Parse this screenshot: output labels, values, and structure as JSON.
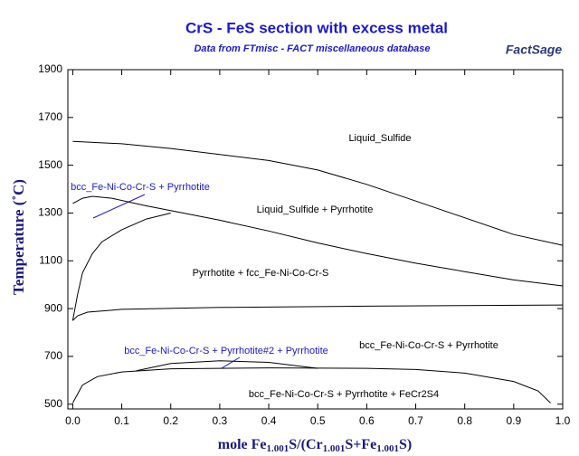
{
  "chart_data": {
    "type": "line",
    "title": "CrS - FeS section with excess metal",
    "subtitle": "Data from FTmisc - FACT miscellaneous database",
    "logo": "FactSage",
    "ylabel": "Temperature (˚C)",
    "xlabel_parts": [
      "mole Fe",
      "1.001",
      "S/(Cr",
      "1.001",
      "S+Fe",
      "1.001",
      "S)"
    ],
    "xlim": [
      -0.01,
      1.0
    ],
    "ylim": [
      480,
      1900
    ],
    "xticks": [
      {
        "value": 0,
        "label": "0.0"
      },
      0.1,
      0.2,
      0.3,
      0.4,
      0.5,
      0.6,
      0.7,
      0.8,
      0.9,
      {
        "value": 1,
        "label": "1.0"
      }
    ],
    "yticks": [
      500,
      700,
      900,
      1100,
      1300,
      1500,
      1700,
      1900
    ],
    "annotations": [
      "Liquid_Sulfide",
      "bcc_Fe-Ni-Co-Cr-S + Pyrrhotite",
      "Liquid_Sulfide + Pyrrhotite",
      "Pyrrhotite + fcc_Fe-Ni-Co-Cr-S",
      "bcc_Fe-Ni-Co-Cr-S + Pyrrhotite#2 + Pyrrhotite",
      "bcc_Fe-Ni-Co-Cr-S + Pyrrhotite",
      "bcc_Fe-Ni-Co-Cr-S + Pyrrhotite + FeCr2S4"
    ],
    "series": [
      {
        "color": "#000000",
        "x": [
          0,
          0.1,
          0.2,
          0.3,
          0.4,
          0.5,
          0.6,
          0.7,
          0.8,
          0.9,
          1.0
        ],
        "values": [
          1600,
          1590,
          1570,
          1545,
          1520,
          1480,
          1420,
          1350,
          1280,
          1210,
          1165
        ]
      },
      {
        "color": "#000000",
        "x": [
          0,
          0.02,
          0.04,
          0.08,
          0.15,
          0.2,
          0.3,
          0.4,
          0.5,
          0.6,
          0.7,
          0.8,
          0.9,
          1.0
        ],
        "values": [
          1340,
          1362,
          1370,
          1362,
          1330,
          1310,
          1270,
          1225,
          1175,
          1130,
          1090,
          1055,
          1020,
          995
        ]
      },
      {
        "color": "#000000",
        "x": [
          0,
          0.01,
          0.02,
          0.04,
          0.06,
          0.1,
          0.15,
          0.2
        ],
        "values": [
          850,
          960,
          1050,
          1130,
          1180,
          1230,
          1275,
          1300
        ]
      },
      {
        "color": "#000000",
        "x": [
          0,
          0.01,
          0.03,
          0.1,
          0.3,
          0.6,
          1.0
        ],
        "values": [
          850,
          870,
          885,
          897,
          905,
          910,
          915
        ]
      },
      {
        "color": "#000000",
        "x": [
          0,
          0.02,
          0.05,
          0.1,
          0.2,
          0.4,
          0.6,
          0.7,
          0.8,
          0.9,
          0.95,
          0.975
        ],
        "values": [
          505,
          580,
          615,
          635,
          648,
          652,
          650,
          645,
          630,
          595,
          555,
          505
        ]
      },
      {
        "color": "#000000",
        "x": [
          0.13,
          0.2,
          0.3,
          0.4,
          0.5
        ],
        "values": [
          640,
          670,
          682,
          675,
          650
        ]
      }
    ]
  }
}
